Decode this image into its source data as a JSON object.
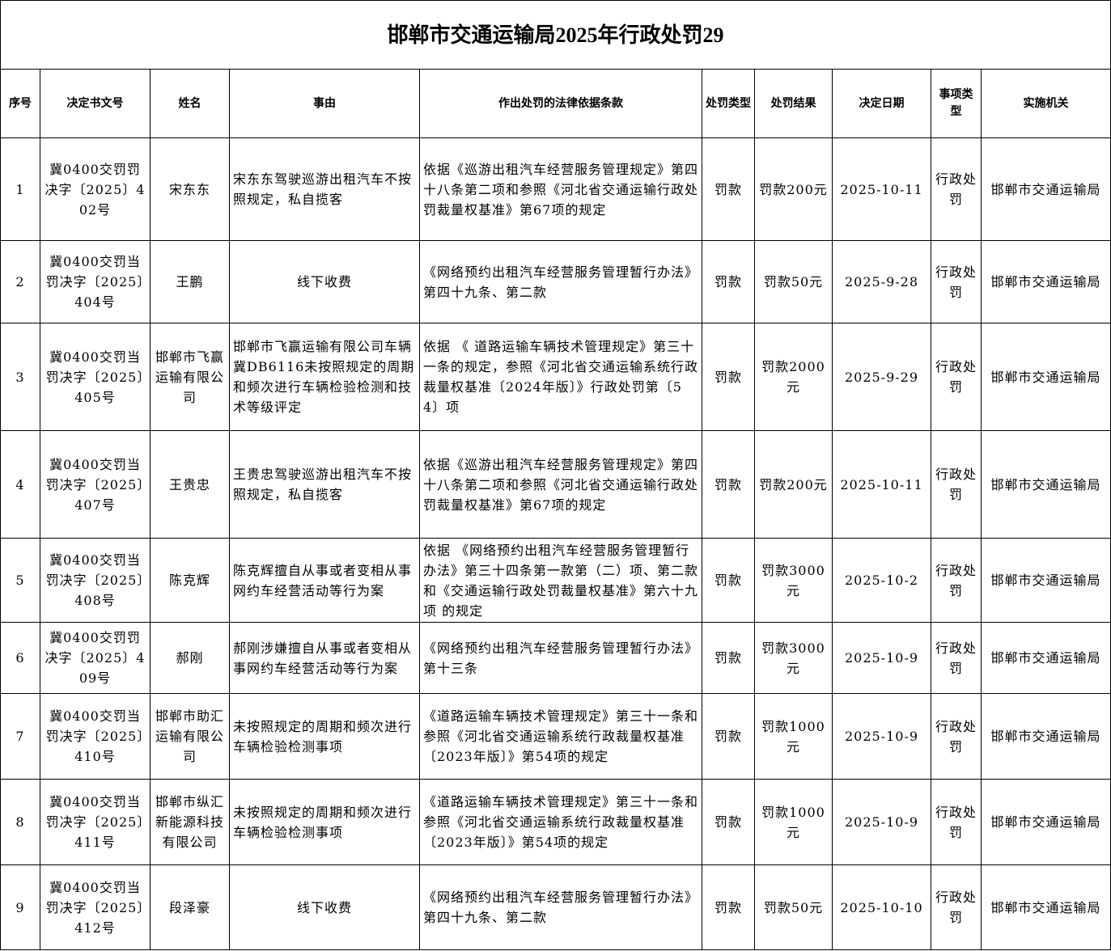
{
  "title": "邯郸市交通运输局2025年行政处罚29",
  "headers": [
    "序号",
    "决定书文号",
    "姓名",
    "事由",
    "作出处罚的法律依据条款",
    "处罚类型",
    "处罚结果",
    "决定日期",
    "事项类型",
    "实施机关"
  ],
  "rows": [
    {
      "no": "1",
      "doc": "冀0400交罚罚决字〔2025〕402号",
      "name": "宋东东",
      "reason": "宋东东驾驶巡游出租汽车不按照规定，私自揽客",
      "basis": "依据《巡游出租汽车经营服务管理规定》第四十八条第二项和参照《河北省交通运输行政处罚裁量权基准》第67项的规定",
      "type": "罚款",
      "result": "罚款200元",
      "date": "2025-10-11",
      "category": "行政处罚",
      "agency": "邯郸市交通运输局"
    },
    {
      "no": "2",
      "doc": "冀0400交罚当罚决字〔2025〕404号",
      "name": "王鹏",
      "reason": "线下收费",
      "basis": "《网络预约出租汽车经营服务管理暂行办法》第四十九条、第二款",
      "type": "罚款",
      "result": "罚款50元",
      "date": "2025-9-28",
      "category": "行政处罚",
      "agency": "邯郸市交通运输局"
    },
    {
      "no": "3",
      "doc": "冀0400交罚当罚决字〔2025〕405号",
      "name": "邯郸市飞赢运输有限公司",
      "reason": "邯郸市飞赢运输有限公司车辆冀DB6116未按照规定的周期和频次进行车辆检验检测和技术等级评定",
      "basis": "依据 《 道路运输车辆技术管理规定》第三十一条的规定，参照《河北省交通运输系统行政裁量权基准〔2024年版〕》行政处罚第〔54〕项",
      "type": "罚款",
      "result": "罚款2000元",
      "date": "2025-9-29",
      "category": "行政处罚",
      "agency": "邯郸市交通运输局"
    },
    {
      "no": "4",
      "doc": "冀0400交罚当罚决字〔2025〕407号",
      "name": "王贵忠",
      "reason": "王贵忠驾驶巡游出租汽车不按照规定，私自揽客",
      "basis": "依据《巡游出租汽车经营服务管理规定》第四十八条第二项和参照《河北省交通运输行政处罚裁量权基准》第67项的规定",
      "type": "罚款",
      "result": "罚款200元",
      "date": "2025-10-11",
      "category": "行政处罚",
      "agency": "邯郸市交通运输局"
    },
    {
      "no": "5",
      "doc": "冀0400交罚当罚决字〔2025〕408号",
      "name": "陈克辉",
      "reason": "  陈克辉擅自从事或者变相从事网约车经营活动等行为案",
      "basis": "依据 《网络预约出租汽车经营服务管理暂行办法》第三十四条第一款第（二）项、第二款和《交通运输行政处罚裁量权基准》第六十九项 的规定",
      "type": "罚款",
      "result": "罚款3000元",
      "date": "2025-10-2",
      "category": "行政处罚",
      "agency": "邯郸市交通运输局"
    },
    {
      "no": "6",
      "doc": "冀0400交罚罚决字〔2025〕409号",
      "name": "郝刚",
      "reason": "郝刚涉嫌擅自从事或者变相从事网约车经营活动等行为案",
      "basis": "《网络预约出租汽车经营服务管理暂行办法》第十三条",
      "type": "罚款",
      "result": "罚款3000元",
      "date": "2025-10-9",
      "category": "行政处罚",
      "agency": "邯郸市交通运输局"
    },
    {
      "no": "7",
      "doc": "冀0400交罚当罚决字〔2025〕410号",
      "name": "邯郸市助汇运输有限公司",
      "reason": "未按照规定的周期和频次进行车辆检验检测事项",
      "basis": "《道路运输车辆技术管理规定》第三十一条和参照《河北省交通运输系统行政裁量权基准〔2023年版〕》第54项的规定",
      "type": "罚款",
      "result": "罚款1000元",
      "date": "2025-10-9",
      "category": "行政处罚",
      "agency": "邯郸市交通运输局"
    },
    {
      "no": "8",
      "doc": "冀0400交罚当罚决字〔2025〕411号",
      "name": "邯郸市纵汇新能源科技有限公司",
      "reason": "未按照规定的周期和频次进行车辆检验检测事项",
      "basis": "《道路运输车辆技术管理规定》第三十一条和参照《河北省交通运输系统行政裁量权基准〔2023年版〕》第54项的规定",
      "type": "罚款",
      "result": "罚款1000元",
      "date": "2025-10-9",
      "category": "行政处罚",
      "agency": "邯郸市交通运输局"
    },
    {
      "no": "9",
      "doc": "冀0400交罚当罚决字〔2025〕412号",
      "name": "段泽豪",
      "reason": "线下收费",
      "basis": "《网络预约出租汽车经营服务管理暂行办法》第四十九条、第二款",
      "type": "罚款",
      "result": "罚款50元",
      "date": "2025-10-10",
      "category": "行政处罚",
      "agency": "邯郸市交通运输局"
    }
  ]
}
